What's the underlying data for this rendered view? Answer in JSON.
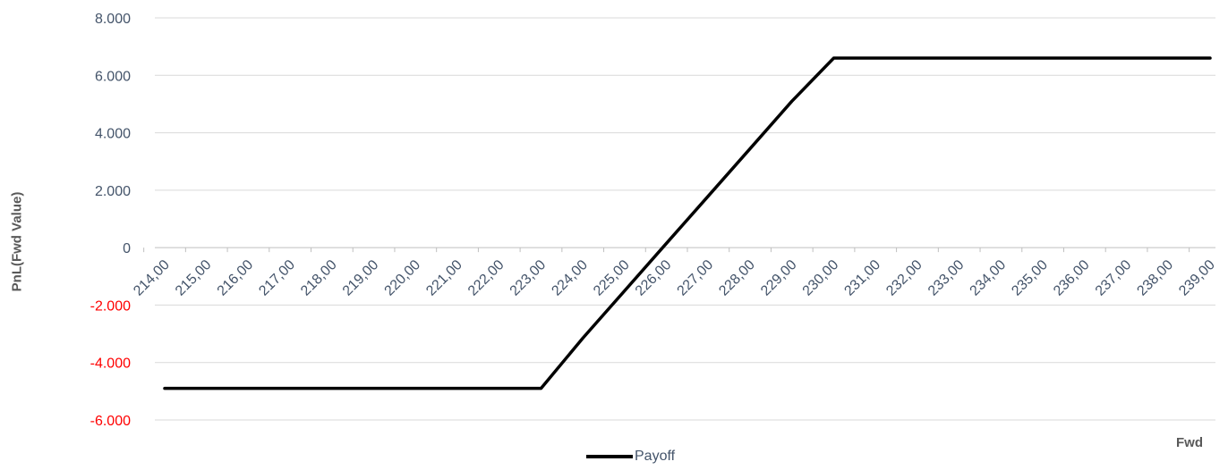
{
  "chart_data": {
    "type": "line",
    "xlabel": "Fwd",
    "ylabel": "PnL(Fwd Value)",
    "x_ticks": [
      "214,00",
      "215,00",
      "216,00",
      "217,00",
      "218,00",
      "219,00",
      "220,00",
      "221,00",
      "222,00",
      "223,00",
      "224,00",
      "225,00",
      "226,00",
      "227,00",
      "228,00",
      "229,00",
      "230,00",
      "231,00",
      "232,00",
      "233,00",
      "234,00",
      "235,00",
      "236,00",
      "237,00",
      "238,00",
      "239,00"
    ],
    "y_ticks": [
      {
        "value": 8000,
        "label": "8.000",
        "color": "#44546a"
      },
      {
        "value": 6000,
        "label": "6.000",
        "color": "#44546a"
      },
      {
        "value": 4000,
        "label": "4.000",
        "color": "#44546a"
      },
      {
        "value": 2000,
        "label": "2.000",
        "color": "#44546a"
      },
      {
        "value": 0,
        "label": "0",
        "color": "#44546a"
      },
      {
        "value": -2000,
        "label": "-2.000",
        "color": "#ff0000"
      },
      {
        "value": -4000,
        "label": "-4.000",
        "color": "#ff0000"
      },
      {
        "value": -6000,
        "label": "-6.000",
        "color": "#ff0000"
      }
    ],
    "ylim": [
      -6000,
      8000
    ],
    "xlim": [
      214,
      239
    ],
    "grid": true,
    "legend_position": "bottom",
    "series": [
      {
        "name": "Payoff",
        "color": "#000000",
        "x": [
          214,
          215,
          216,
          217,
          218,
          219,
          220,
          221,
          222,
          223,
          224,
          225,
          226,
          227,
          228,
          229,
          230,
          231,
          232,
          233,
          234,
          235,
          236,
          237,
          238,
          239
        ],
        "y": [
          -4900,
          -4900,
          -4900,
          -4900,
          -4900,
          -4900,
          -4900,
          -4900,
          -4900,
          -4900,
          -3150,
          -1500,
          150,
          1800,
          3450,
          5100,
          6600,
          6600,
          6600,
          6600,
          6600,
          6600,
          6600,
          6600,
          6600,
          6600
        ]
      }
    ]
  }
}
